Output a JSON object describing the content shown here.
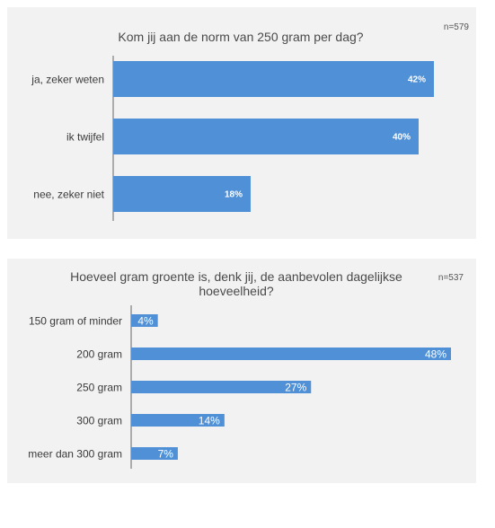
{
  "charts": [
    {
      "title": "Kom jij aan de norm van 250 gram per dag?",
      "n": "n=579"
    },
    {
      "title": "Hoeveel gram groente is, denk jij, de aanbevolen dagelijkse hoeveelheid?",
      "n": "n=537"
    }
  ],
  "colors": {
    "bar": "#4f90d6",
    "panel": "#f2f2f2"
  },
  "chart_data": [
    {
      "type": "bar",
      "orientation": "horizontal",
      "title": "Kom jij aan de norm van 250 gram per dag?",
      "categories": [
        "ja, zeker weten",
        "ik twijfel",
        "nee, zeker niet"
      ],
      "values": [
        42,
        40,
        18
      ],
      "labels": [
        "42%",
        "40%",
        "18%"
      ],
      "xlim": [
        0,
        42
      ],
      "grid": false,
      "note": "n=579"
    },
    {
      "type": "bar",
      "orientation": "horizontal",
      "title": "Hoeveel gram groente is, denk jij, de aanbevolen dagelijkse hoeveelheid?",
      "categories": [
        "150 gram of minder",
        "200 gram",
        "250 gram",
        "300 gram",
        "meer dan 300 gram"
      ],
      "values": [
        4,
        48,
        27,
        14,
        7
      ],
      "labels": [
        "4%",
        "48%",
        "27%",
        "14%",
        "7%"
      ],
      "xlim": [
        0,
        48
      ],
      "grid": false,
      "note": "n=537"
    }
  ]
}
